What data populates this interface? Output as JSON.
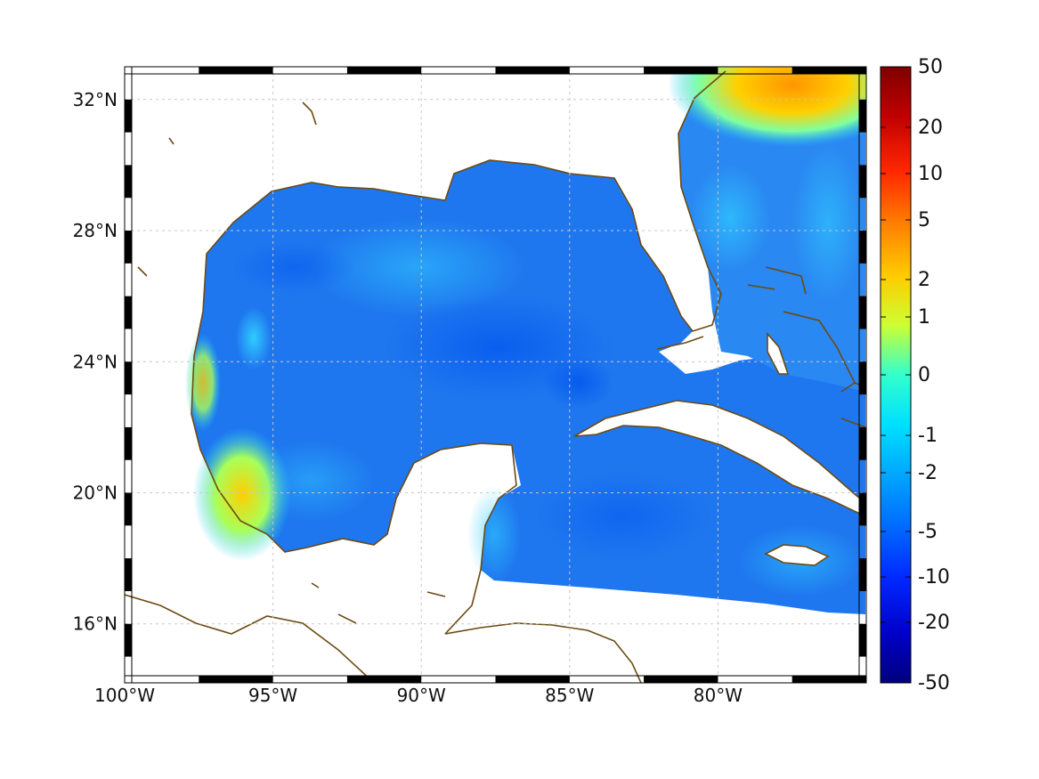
{
  "map": {
    "lon_range": [
      -100,
      -75
    ],
    "lat_range": [
      14.2,
      33
    ],
    "lon_ticks": [
      {
        "value": -100,
        "label": "100°W"
      },
      {
        "value": -95,
        "label": "95°W"
      },
      {
        "value": -90,
        "label": "90°W"
      },
      {
        "value": -85,
        "label": "85°W"
      },
      {
        "value": -80,
        "label": "80°W"
      }
    ],
    "lat_ticks": [
      {
        "value": 32,
        "label": "32°N"
      },
      {
        "value": 28,
        "label": "28°N"
      },
      {
        "value": 24,
        "label": "24°N"
      },
      {
        "value": 20,
        "label": "20°N"
      },
      {
        "value": 16,
        "label": "16°N"
      }
    ],
    "grid": true,
    "coastline_color": "#6b4a12",
    "ocean_base_color": "#1f78f0"
  },
  "colorbar": {
    "ticks": [
      "50",
      "20",
      "10",
      "5",
      "2",
      "1",
      "0",
      "-1",
      "-2",
      "-5",
      "-10",
      "-20",
      "-50"
    ],
    "colors": [
      "#7f0000",
      "#c00000",
      "#ff3000",
      "#ff8c00",
      "#ffd500",
      "#bfff3f",
      "#3fffbf",
      "#00d5ff",
      "#00b0ff",
      "#0070ff",
      "#0030ff",
      "#0000c0",
      "#00007f"
    ]
  }
}
